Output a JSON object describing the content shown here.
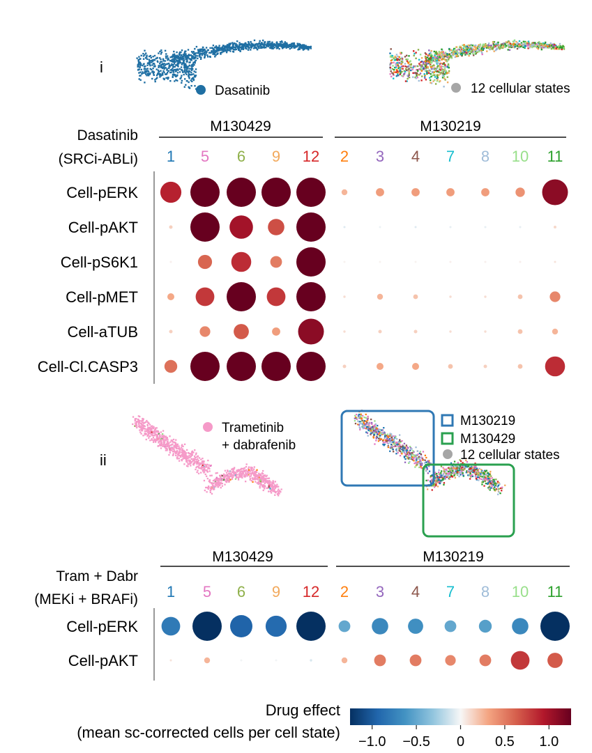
{
  "panel_i": {
    "label": "i",
    "umap_left_legend": "Dasatinib",
    "umap_right_legend": "12 cellular states",
    "drug_line1": "Dasatinib",
    "drug_line2": "(SRCi-ABLi)",
    "group1": "M130429",
    "group2": "M130219"
  },
  "panel_ii": {
    "label": "ii",
    "umap_left_legend_line1": "Trametinib",
    "umap_left_legend_line2": "+ dabrafenib",
    "box_legend_1": "M130219",
    "box_legend_2": "M130429",
    "box_legend_3": "12 cellular states",
    "drug_line1": "Tram + Dabr",
    "drug_line2": "(MEKi + BRAFi)",
    "group1": "M130429",
    "group2": "M130219"
  },
  "colorbar": {
    "title_line1": "Drug effect",
    "title_line2": "(mean sc-corrected cells per cell state)",
    "ticks": [
      "−1.0",
      "−0.5",
      "0",
      "0.5",
      "1.0"
    ],
    "tick_values": [
      -1.0,
      -0.5,
      0,
      0.5,
      1.0
    ],
    "range": [
      -1.25,
      1.25
    ]
  },
  "colors": {
    "dasatinib": "#1f6fa3",
    "trametinib": "#f59ac8",
    "box_M130219": "#2f78b4",
    "box_M130429": "#2aa04f",
    "states_gray": "#a6a6a6"
  },
  "chart_data": [
    {
      "type": "bubble-heatmap",
      "title": "Dasatinib (SRCi-ABLi)",
      "groups": [
        {
          "name": "M130429",
          "states": [
            "1",
            "5",
            "6",
            "9",
            "12"
          ]
        },
        {
          "name": "M130219",
          "states": [
            "2",
            "3",
            "4",
            "7",
            "8",
            "10",
            "11"
          ]
        }
      ],
      "columns": [
        "1",
        "5",
        "6",
        "9",
        "12",
        "2",
        "3",
        "4",
        "7",
        "8",
        "10",
        "11"
      ],
      "column_colors": [
        "#1f77b4",
        "#e377c2",
        "#8fb04a",
        "#f2a95c",
        "#d62728",
        "#ff7f0e",
        "#9467bd",
        "#8c564b",
        "#17becf",
        "#9fbcd8",
        "#98df8a",
        "#2ca02c"
      ],
      "rows": [
        "Cell-pERK",
        "Cell-pAKT",
        "Cell-pS6K1",
        "Cell-pMET",
        "Cell-aTUB",
        "Cell-Cl.CASP3"
      ],
      "values": [
        [
          0.9,
          1.25,
          1.25,
          1.25,
          1.25,
          0.25,
          0.35,
          0.35,
          0.35,
          0.35,
          0.4,
          1.1
        ],
        [
          0.15,
          1.25,
          1.0,
          0.7,
          1.25,
          -0.08,
          -0.03,
          -0.08,
          -0.05,
          -0.05,
          -0.05,
          0.12
        ],
        [
          0.03,
          0.6,
          0.85,
          0.5,
          1.25,
          0.02,
          0.02,
          0.02,
          0.03,
          0.03,
          0.03,
          0.08
        ],
        [
          0.3,
          0.8,
          1.25,
          0.8,
          1.25,
          0.1,
          0.25,
          0.2,
          0.1,
          0.1,
          0.2,
          0.45
        ],
        [
          0.15,
          0.45,
          0.65,
          0.35,
          1.1,
          0.1,
          0.15,
          0.15,
          0.1,
          0.1,
          0.2,
          0.25
        ],
        [
          0.55,
          1.25,
          1.25,
          1.25,
          1.25,
          0.15,
          0.3,
          0.3,
          0.2,
          0.15,
          0.2,
          0.85
        ]
      ]
    },
    {
      "type": "bubble-heatmap",
      "title": "Tram + Dabr (MEKi + BRAFi)",
      "groups": [
        {
          "name": "M130429",
          "states": [
            "1",
            "5",
            "6",
            "9",
            "12"
          ]
        },
        {
          "name": "M130219",
          "states": [
            "2",
            "3",
            "4",
            "7",
            "8",
            "10",
            "11"
          ]
        }
      ],
      "columns": [
        "1",
        "5",
        "6",
        "9",
        "12",
        "2",
        "3",
        "4",
        "7",
        "8",
        "10",
        "11"
      ],
      "column_colors": [
        "#1f77b4",
        "#e377c2",
        "#8fb04a",
        "#f2a95c",
        "#d62728",
        "#ff7f0e",
        "#9467bd",
        "#8c564b",
        "#17becf",
        "#9fbcd8",
        "#98df8a",
        "#2ca02c"
      ],
      "rows": [
        "Cell-pERK",
        "Cell-pAKT"
      ],
      "values": [
        [
          -0.8,
          -1.25,
          -0.95,
          -0.9,
          -1.25,
          -0.5,
          -0.7,
          -0.65,
          -0.5,
          -0.55,
          -0.7,
          -1.25
        ],
        [
          0.08,
          0.25,
          -0.02,
          -0.02,
          -0.1,
          0.25,
          0.5,
          0.5,
          0.45,
          0.5,
          0.8,
          0.65
        ]
      ]
    }
  ]
}
